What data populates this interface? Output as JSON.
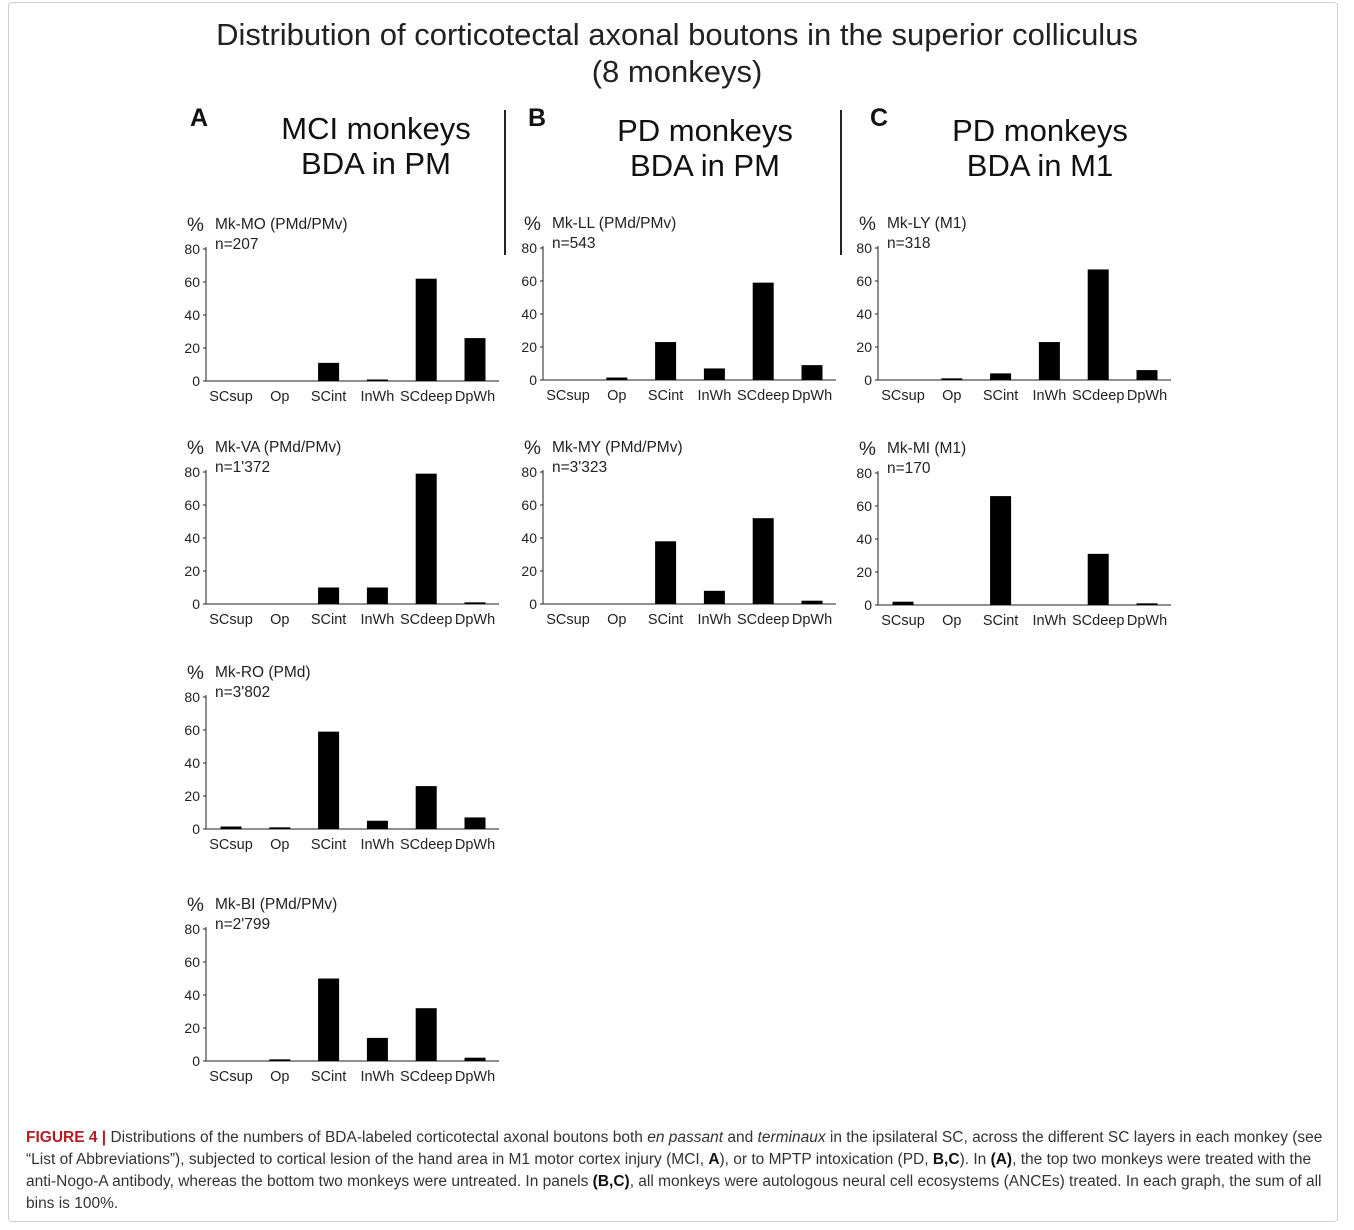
{
  "title_line1": "Distribution of corticotectal axonal boutons in the superior colliculus",
  "title_line2": "(8 monkeys)",
  "panels": [
    {
      "letter": "A",
      "line1": "MCI monkeys",
      "line2": "BDA in PM"
    },
    {
      "letter": "B",
      "line1": "PD monkeys",
      "line2": "BDA in PM"
    },
    {
      "letter": "C",
      "line1": "PD monkeys",
      "line2": "BDA in M1"
    }
  ],
  "caption": {
    "figure_label": "FIGURE 4",
    "separator": " | ",
    "t1": "Distributions of the numbers of BDA-labeled corticotectal axonal boutons both ",
    "i1": "en passant",
    "t2": " and ",
    "i2": "terminaux",
    "t3": " in the ipsilateral SC, across the different SC layers in each monkey (see “List of Abbreviations”), subjected to cortical lesion of the hand area in M1 motor cortex injury (MCI, ",
    "b1": "A",
    "t4": "), or to MPTP intoxication (PD, ",
    "b2": "B,C",
    "t5": "). In ",
    "b3": "(A)",
    "t6": ", the top two monkeys were treated with the anti-Nogo-A antibody, whereas the bottom two monkeys were untreated. In panels ",
    "b4": "(B,C)",
    "t7": ", all monkeys were autologous neural cell ecosystems (ANCEs) treated. In each graph, the sum of all bins is 100%."
  },
  "chart_data": [
    {
      "type": "bar",
      "panel": "A",
      "label": "Mk-MO (PMd/PMv)",
      "n": "n=207",
      "ylabel": "%",
      "ylim": [
        0,
        80
      ],
      "yticks": [
        "0",
        "20",
        "40",
        "60",
        "80"
      ],
      "categories": [
        "SCsup",
        "Op",
        "SCint",
        "InWh",
        "SCdeep",
        "DpWh"
      ],
      "values": [
        0,
        0,
        11,
        0.5,
        62,
        26
      ]
    },
    {
      "type": "bar",
      "panel": "A",
      "label": "Mk-VA (PMd/PMv)",
      "n": "n=1'372",
      "ylabel": "%",
      "ylim": [
        0,
        80
      ],
      "yticks": [
        "0",
        "20",
        "40",
        "60",
        "80"
      ],
      "categories": [
        "SCsup",
        "Op",
        "SCint",
        "InWh",
        "SCdeep",
        "DpWh"
      ],
      "values": [
        0,
        0,
        10,
        10,
        79,
        1
      ]
    },
    {
      "type": "bar",
      "panel": "A",
      "label": "Mk-RO (PMd)",
      "n": "n=3'802",
      "ylabel": "%",
      "ylim": [
        0,
        80
      ],
      "yticks": [
        "0",
        "20",
        "40",
        "60",
        "80"
      ],
      "categories": [
        "SCsup",
        "Op",
        "SCint",
        "InWh",
        "SCdeep",
        "DpWh"
      ],
      "values": [
        1.5,
        1,
        59,
        5,
        26,
        7
      ]
    },
    {
      "type": "bar",
      "panel": "A",
      "label": "Mk-BI (PMd/PMv)",
      "n": "n=2'799",
      "ylabel": "%",
      "ylim": [
        0,
        80
      ],
      "yticks": [
        "0",
        "20",
        "40",
        "60",
        "80"
      ],
      "categories": [
        "SCsup",
        "Op",
        "SCint",
        "InWh",
        "SCdeep",
        "DpWh"
      ],
      "values": [
        0,
        1,
        50,
        14,
        32,
        2
      ]
    },
    {
      "type": "bar",
      "panel": "B",
      "label": "Mk-LL (PMd/PMv)",
      "n": "n=543",
      "ylabel": "%",
      "ylim": [
        0,
        80
      ],
      "yticks": [
        "0",
        "20",
        "40",
        "60",
        "80"
      ],
      "categories": [
        "SCsup",
        "Op",
        "SCint",
        "InWh",
        "SCdeep",
        "DpWh"
      ],
      "values": [
        0,
        1.5,
        23,
        7,
        59,
        9
      ]
    },
    {
      "type": "bar",
      "panel": "B",
      "label": "Mk-MY (PMd/PMv)",
      "n": "n=3'323",
      "ylabel": "%",
      "ylim": [
        0,
        80
      ],
      "yticks": [
        "0",
        "20",
        "40",
        "60",
        "80"
      ],
      "categories": [
        "SCsup",
        "Op",
        "SCint",
        "InWh",
        "SCdeep",
        "DpWh"
      ],
      "values": [
        0,
        0,
        38,
        8,
        52,
        2
      ]
    },
    {
      "type": "bar",
      "panel": "C",
      "label": "Mk-LY (M1)",
      "n": "n=318",
      "ylabel": "%",
      "ylim": [
        0,
        80
      ],
      "yticks": [
        "0",
        "20",
        "40",
        "60",
        "80"
      ],
      "categories": [
        "SCsup",
        "Op",
        "SCint",
        "InWh",
        "SCdeep",
        "DpWh"
      ],
      "values": [
        0,
        1,
        4,
        23,
        67,
        6
      ]
    },
    {
      "type": "bar",
      "panel": "C",
      "label": "Mk-MI (M1)",
      "n": "n=170",
      "ylabel": "%",
      "ylim": [
        0,
        80
      ],
      "yticks": [
        "0",
        "20",
        "40",
        "60",
        "80"
      ],
      "categories": [
        "SCsup",
        "Op",
        "SCint",
        "InWh",
        "SCdeep",
        "DpWh"
      ],
      "values": [
        2,
        0,
        66,
        0,
        31,
        1
      ]
    }
  ]
}
